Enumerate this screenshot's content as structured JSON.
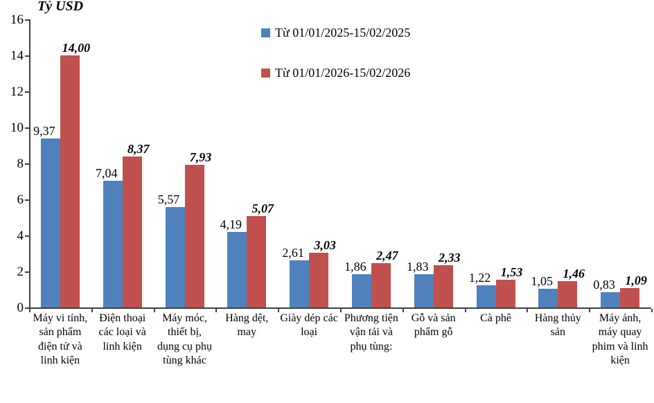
{
  "title": "Tỷ USD",
  "colors": {
    "series1": "#4F81BD",
    "series2": "#C0504D",
    "axis": "#404040",
    "text": "#000000",
    "background": "#ffffff"
  },
  "legend": {
    "items": [
      {
        "label": "Từ 01/01/2025-15/02/2025",
        "color": "#4F81BD"
      },
      {
        "label": "Từ 01/01/2026-15/02/2026",
        "color": "#C0504D"
      }
    ]
  },
  "chart_data": {
    "type": "bar",
    "title": "Tỷ USD",
    "categories": [
      "Máy vi tính, sản phẩm điện tử và linh kiện",
      "Điện thoại các loại và linh kiện",
      "Máy móc, thiết bị, dụng cụ phụ tùng khác",
      "Hàng dệt, may",
      "Giày dép các loại",
      "Phương tiện vận tải và phụ tùng:",
      "Gỗ và sản phẩm gỗ",
      "Cà phê",
      "Hàng thủy sản",
      "Máy ảnh, máy quay phim và linh kiện"
    ],
    "series": [
      {
        "name": "Từ 01/01/2025-15/02/2025",
        "color": "#4F81BD",
        "values": [
          9.37,
          7.04,
          5.57,
          4.19,
          2.61,
          1.86,
          1.83,
          1.22,
          1.05,
          0.83
        ],
        "labels": [
          "9,37",
          "7,04",
          "5,57",
          "4,19",
          "2,61",
          "1,86",
          "1,83",
          "1,22",
          "1,05",
          "0,83"
        ]
      },
      {
        "name": "Từ 01/01/2026-15/02/2026",
        "color": "#C0504D",
        "values": [
          14.0,
          8.37,
          7.93,
          5.07,
          3.03,
          2.47,
          2.33,
          1.53,
          1.46,
          1.09
        ],
        "labels": [
          "14,00",
          "8,37",
          "7,93",
          "5,07",
          "3,03",
          "2,47",
          "2,33",
          "1,53",
          "1,46",
          "1,09"
        ]
      }
    ],
    "ylabel": "Tỷ USD",
    "xlabel": "",
    "ylim": [
      0,
      16
    ],
    "ytick_step": 2,
    "yticks": [
      "0",
      "2",
      "4",
      "6",
      "8",
      "10",
      "12",
      "14",
      "16"
    ],
    "grid": false,
    "legend_position": "top-center",
    "value_labels_shown": true
  }
}
